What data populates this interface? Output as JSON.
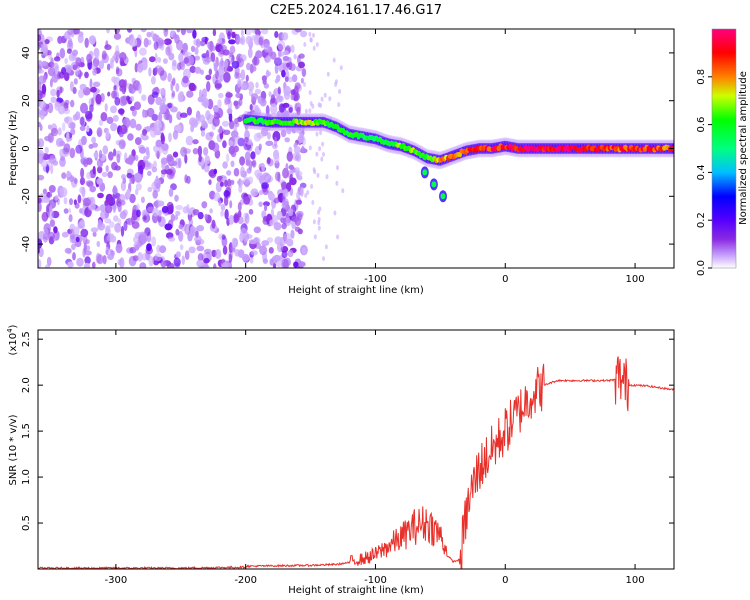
{
  "figure_title": "C2E5.2024.161.17.46.G17",
  "chart_data": [
    {
      "type": "heatmap",
      "description": "Spectrogram of normalized spectral amplitude vs height of straight line",
      "xlabel": "Height of straight line (km)",
      "ylabel": "Frequency (Hz)",
      "xlim": [
        -360,
        130
      ],
      "ylim": [
        -50,
        50
      ],
      "xticks": [
        -300,
        -200,
        -100,
        0,
        100
      ],
      "yticks": [
        -40,
        -20,
        0,
        20,
        40
      ],
      "colorbar": {
        "label": "Normalized spectral amplitude",
        "range": [
          0.0,
          1.0
        ],
        "ticks": [
          0.0,
          0.2,
          0.4,
          0.6,
          0.8
        ],
        "colormap": [
          "#ffffff",
          "#b780ff",
          "#7700ff",
          "#0000ff",
          "#00ffff",
          "#00ff00",
          "#ffff00",
          "#ff8000",
          "#ff0000",
          "#ff0080"
        ]
      },
      "noise_region": {
        "x_range": [
          -360,
          -155
        ],
        "y_range": [
          -50,
          50
        ]
      },
      "ridge": {
        "x": [
          -200,
          -180,
          -160,
          -150,
          -140,
          -130,
          -120,
          -110,
          -100,
          -90,
          -80,
          -70,
          -60,
          -50,
          -40,
          -30,
          -20,
          -10,
          0,
          10,
          40,
          80,
          130
        ],
        "y": [
          12,
          11,
          11,
          11,
          11,
          9,
          6,
          5,
          4,
          2,
          1,
          -1,
          -4,
          -5,
          -3,
          -1,
          0,
          0,
          1,
          0,
          0,
          0,
          0
        ],
        "amplitude": [
          0.6,
          0.65,
          0.7,
          0.75,
          0.7,
          0.6,
          0.65,
          0.6,
          0.6,
          0.65,
          0.7,
          0.7,
          0.65,
          0.8,
          0.85,
          0.9,
          0.9,
          0.95,
          0.95,
          1.0,
          1.0,
          0.9,
          0.9
        ]
      },
      "branch": {
        "x": [
          -62,
          -55,
          -48
        ],
        "y": [
          -10,
          -15,
          -20
        ]
      }
    },
    {
      "type": "line",
      "xlabel": "Height of straight line (km)",
      "ylabel": "SNR (10 * v/v)",
      "y_multiplier": "(x10^4)",
      "xlim": [
        -360,
        130
      ],
      "ylim": [
        0,
        2.6
      ],
      "xticks": [
        -300,
        -200,
        -100,
        0,
        100
      ],
      "yticks": [
        0.5,
        1.0,
        1.5,
        2.0,
        2.5
      ],
      "series": [
        {
          "color": "#e8302a",
          "x": [
            -360,
            -300,
            -250,
            -200,
            -150,
            -130,
            -110,
            -100,
            -90,
            -80,
            -70,
            -60,
            -50,
            -45,
            -40,
            -35,
            -30,
            -25,
            -20,
            -15,
            -10,
            -5,
            0,
            5,
            10,
            15,
            20,
            25,
            30,
            40,
            50,
            60,
            70,
            80,
            85,
            88,
            90,
            92,
            95,
            100,
            110,
            120,
            130
          ],
          "y": [
            0.01,
            0.01,
            0.01,
            0.02,
            0.03,
            0.04,
            0.08,
            0.12,
            0.2,
            0.28,
            0.38,
            0.42,
            0.3,
            0.15,
            0.08,
            0.1,
            0.6,
            0.9,
            1.1,
            1.2,
            1.3,
            1.4,
            1.5,
            1.6,
            1.7,
            1.8,
            1.9,
            1.95,
            2.0,
            2.05,
            2.05,
            2.05,
            2.05,
            2.05,
            2.06,
            2.1,
            2.05,
            2.02,
            2.0,
            2.0,
            1.99,
            1.97,
            1.95
          ]
        }
      ]
    }
  ]
}
